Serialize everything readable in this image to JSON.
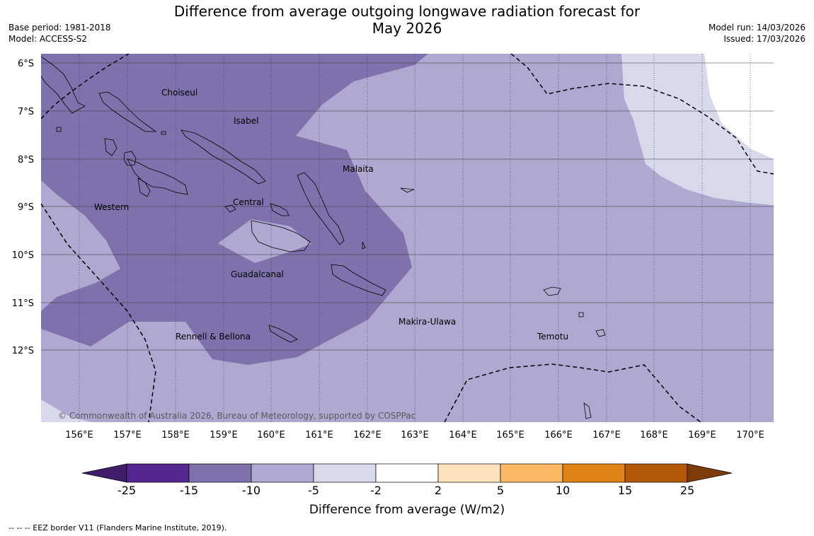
{
  "header": {
    "title": "Difference from average outgoing longwave radiation forecast for\nMay 2026",
    "base_period": "Base period: 1981-2018",
    "model": "Model: ACCESS-S2",
    "model_run": "Model run: 14/03/2026",
    "issued": "Issued: 17/03/2026"
  },
  "map": {
    "lat_labels": [
      "6°S",
      "7°S",
      "8°S",
      "9°S",
      "10°S",
      "11°S",
      "12°S"
    ],
    "lon_labels": [
      "156°E",
      "157°E",
      "158°E",
      "159°E",
      "160°E",
      "161°E",
      "162°E",
      "163°E",
      "164°E",
      "165°E",
      "166°E",
      "167°E",
      "168°E",
      "169°E",
      "170°E"
    ],
    "places": {
      "choiseul": "Choiseul",
      "isabel": "Isabel",
      "malaita": "Malaita",
      "western": "Western",
      "central": "Central",
      "guadalcanal": "Guadalcanal",
      "rennell_bellona": "Rennell & Bellona",
      "makira_ulawa": "Makira-Ulawa",
      "temotu": "Temotu"
    },
    "copyright": "© Commonwealth of Australia 2026, Bureau of Meteorology, supported by COSPPac"
  },
  "colorbar": {
    "ticks": [
      "-25",
      "-15",
      "-10",
      "-5",
      "-2",
      "2",
      "5",
      "10",
      "15",
      "25"
    ],
    "colors": [
      "#3f1f6a",
      "#54278f",
      "#7f71ab",
      "#afa8d0",
      "#d9d9ec",
      "#ffffff",
      "#ffe1bd",
      "#fdb864",
      "#e08214",
      "#b35806",
      "#7f3b08"
    ],
    "title": "Difference from average (W/m2)"
  },
  "footnote": "--  --  -- EEZ border V11 (Flanders Marine Institute, 2019)."
}
